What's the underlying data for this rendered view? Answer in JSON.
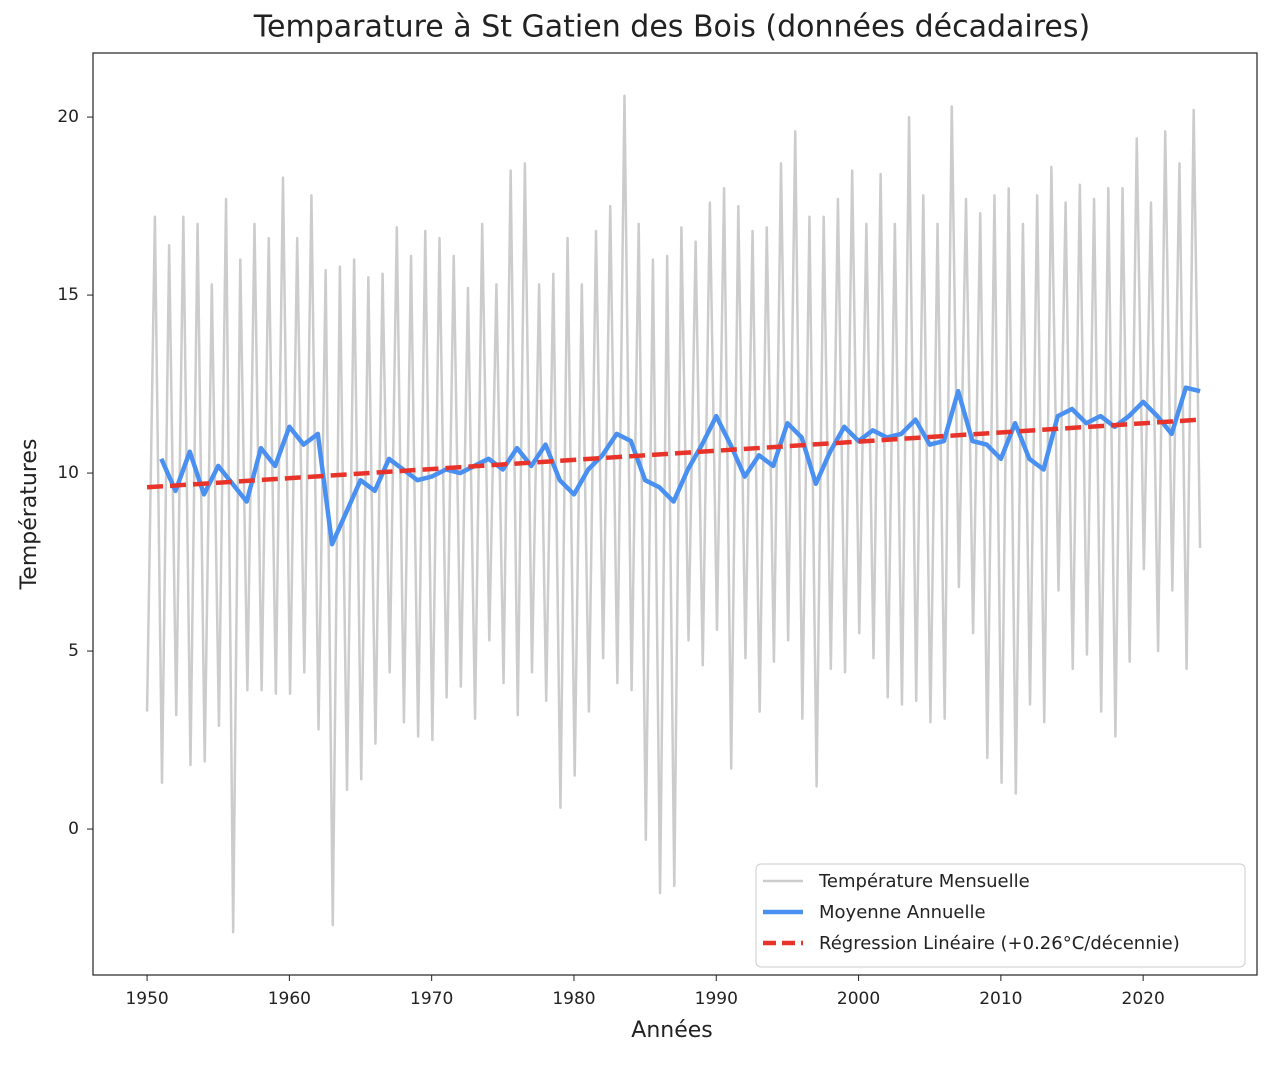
{
  "chart_data": {
    "type": "line",
    "title": "Temparature à St Gatien des Bois (données décadaires)",
    "xlabel": "Années",
    "ylabel": "Températures",
    "xlim": [
      1946.2,
      2028.0
    ],
    "ylim": [
      -4.1,
      21.8
    ],
    "xticks": [
      1950,
      1960,
      1970,
      1980,
      1990,
      2000,
      2010,
      2020
    ],
    "yticks": [
      0,
      5,
      10,
      15,
      20
    ],
    "grid": false,
    "legend": "lower right",
    "series": [
      {
        "name": "Température Mensuelle",
        "color": "#cccccc",
        "linestyle": "solid",
        "x": [
          1950.0,
          1950.55,
          1951.05,
          1951.55,
          1952.05,
          1952.55,
          1953.05,
          1953.55,
          1954.05,
          1954.55,
          1955.05,
          1955.55,
          1956.05,
          1956.55,
          1957.05,
          1957.55,
          1958.05,
          1958.55,
          1959.05,
          1959.55,
          1960.05,
          1960.55,
          1961.05,
          1961.55,
          1962.05,
          1962.55,
          1963.05,
          1963.55,
          1964.05,
          1964.55,
          1965.05,
          1965.55,
          1966.05,
          1966.55,
          1967.05,
          1967.55,
          1968.05,
          1968.55,
          1969.05,
          1969.55,
          1970.05,
          1970.55,
          1971.05,
          1971.55,
          1972.05,
          1972.55,
          1973.05,
          1973.55,
          1974.05,
          1974.55,
          1975.05,
          1975.55,
          1976.05,
          1976.55,
          1977.05,
          1977.55,
          1978.05,
          1978.55,
          1979.05,
          1979.55,
          1980.05,
          1980.55,
          1981.05,
          1981.55,
          1982.05,
          1982.55,
          1983.05,
          1983.55,
          1984.05,
          1984.55,
          1985.05,
          1985.55,
          1986.05,
          1986.55,
          1987.05,
          1987.55,
          1988.05,
          1988.55,
          1989.05,
          1989.55,
          1990.05,
          1990.55,
          1991.05,
          1991.55,
          1992.05,
          1992.55,
          1993.05,
          1993.55,
          1994.05,
          1994.55,
          1995.05,
          1995.55,
          1996.05,
          1996.55,
          1997.05,
          1997.55,
          1998.05,
          1998.55,
          1999.05,
          1999.55,
          2000.05,
          2000.55,
          2001.05,
          2001.55,
          2002.05,
          2002.55,
          2003.05,
          2003.55,
          2004.05,
          2004.55,
          2005.05,
          2005.55,
          2006.05,
          2006.55,
          2007.05,
          2007.55,
          2008.05,
          2008.55,
          2009.05,
          2009.55,
          2010.05,
          2010.55,
          2011.05,
          2011.55,
          2012.05,
          2012.55,
          2013.05,
          2013.55,
          2014.05,
          2014.55,
          2015.05,
          2015.55,
          2016.05,
          2016.55,
          2017.05,
          2017.55,
          2018.05,
          2018.55,
          2019.05,
          2019.55,
          2020.05,
          2020.55,
          2021.05,
          2021.55,
          2022.05,
          2022.55,
          2023.05,
          2023.55,
          2024.0
        ],
        "values": [
          3.3,
          17.2,
          1.3,
          16.4,
          3.2,
          17.2,
          1.8,
          17.0,
          1.9,
          15.3,
          2.9,
          17.7,
          -2.9,
          16.0,
          3.9,
          17.0,
          3.9,
          16.6,
          3.8,
          18.3,
          3.8,
          16.6,
          4.4,
          17.8,
          2.8,
          15.7,
          -2.7,
          15.8,
          1.1,
          16.0,
          1.4,
          15.5,
          2.4,
          15.6,
          4.4,
          16.9,
          3.0,
          16.1,
          2.6,
          16.8,
          2.5,
          16.6,
          3.7,
          16.1,
          4.0,
          15.2,
          3.1,
          17.0,
          5.3,
          15.3,
          4.1,
          18.5,
          3.2,
          18.7,
          4.4,
          15.3,
          3.6,
          15.6,
          0.6,
          16.6,
          1.5,
          15.3,
          3.3,
          16.8,
          4.8,
          17.5,
          4.1,
          20.6,
          3.9,
          17.0,
          -0.3,
          16.0,
          -1.8,
          16.1,
          -1.6,
          16.9,
          5.3,
          16.5,
          4.6,
          17.6,
          5.6,
          18.0,
          1.7,
          17.5,
          4.8,
          16.8,
          3.3,
          16.9,
          4.7,
          18.7,
          5.3,
          19.6,
          3.1,
          17.2,
          1.2,
          17.2,
          4.5,
          17.7,
          4.4,
          18.5,
          5.5,
          17.0,
          4.8,
          18.4,
          3.7,
          17.0,
          3.5,
          20.0,
          3.6,
          17.8,
          3.0,
          17.0,
          3.1,
          20.3,
          6.8,
          17.7,
          5.5,
          17.3,
          2.0,
          17.8,
          1.3,
          18.0,
          1.0,
          17.0,
          3.5,
          17.8,
          3.0,
          18.6,
          6.7,
          17.6,
          4.5,
          18.1,
          4.9,
          17.7,
          3.3,
          18.0,
          2.6,
          18.0,
          4.7,
          19.4,
          7.3,
          17.6,
          5.0,
          19.6,
          6.7,
          18.7,
          4.5,
          20.2,
          7.9
        ]
      },
      {
        "name": "Moyenne Annuelle",
        "color": "#4a90f0",
        "linestyle": "solid",
        "x": [
          1951,
          1952,
          1953,
          1954,
          1955,
          1956,
          1957,
          1958,
          1959,
          1960,
          1961,
          1962,
          1963,
          1964,
          1965,
          1966,
          1967,
          1968,
          1969,
          1970,
          1971,
          1972,
          1973,
          1974,
          1975,
          1976,
          1977,
          1978,
          1979,
          1980,
          1981,
          1982,
          1983,
          1984,
          1985,
          1986,
          1987,
          1988,
          1989,
          1990,
          1991,
          1992,
          1993,
          1994,
          1995,
          1996,
          1997,
          1998,
          1999,
          2000,
          2001,
          2002,
          2003,
          2004,
          2005,
          2006,
          2007,
          2008,
          2009,
          2010,
          2011,
          2012,
          2013,
          2014,
          2015,
          2016,
          2017,
          2018,
          2019,
          2020,
          2021,
          2022,
          2023,
          2024
        ],
        "values": [
          10.4,
          9.5,
          10.6,
          9.4,
          10.2,
          9.7,
          9.2,
          10.7,
          10.2,
          11.3,
          10.8,
          11.1,
          8.0,
          8.9,
          9.8,
          9.5,
          10.4,
          10.1,
          9.8,
          9.9,
          10.1,
          10.0,
          10.2,
          10.4,
          10.1,
          10.7,
          10.2,
          10.8,
          9.8,
          9.4,
          10.1,
          10.5,
          11.1,
          10.9,
          9.8,
          9.6,
          9.2,
          10.1,
          10.8,
          11.6,
          10.8,
          9.9,
          10.5,
          10.2,
          11.4,
          11.0,
          9.7,
          10.6,
          11.3,
          10.9,
          11.2,
          11.0,
          11.1,
          11.5,
          10.8,
          10.9,
          12.3,
          10.9,
          10.8,
          10.4,
          11.4,
          10.4,
          10.1,
          11.6,
          11.8,
          11.4,
          11.6,
          11.3,
          11.6,
          12.0,
          11.6,
          11.1,
          12.4,
          12.3
        ]
      },
      {
        "name": "Régression Linéaire (+0.26°C/décennie)",
        "color": "#e8332a",
        "linestyle": "dashed",
        "x": [
          1950,
          2024
        ],
        "values": [
          9.6,
          11.5
        ]
      }
    ]
  }
}
